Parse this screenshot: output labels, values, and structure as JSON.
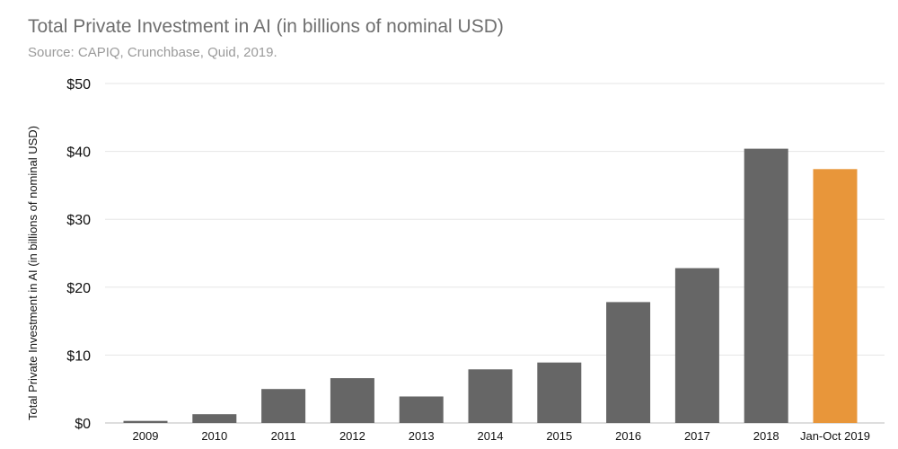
{
  "chart_data": {
    "type": "bar",
    "title": "Total Private Investment in AI (in billions of nominal USD)",
    "subtitle": "Source: CAPIQ, Crunchbase, Quid, 2019.",
    "xlabel": "",
    "ylabel": "Total Private Investment in AI (in billions of nominal USD)",
    "categories": [
      "2009",
      "2010",
      "2011",
      "2012",
      "2013",
      "2014",
      "2015",
      "2016",
      "2017",
      "2018",
      "Jan-Oct 2019"
    ],
    "values": [
      0.3,
      1.3,
      5.0,
      6.6,
      3.9,
      7.9,
      8.9,
      17.8,
      22.8,
      40.4,
      37.4
    ],
    "bar_colors": [
      "#666666",
      "#666666",
      "#666666",
      "#666666",
      "#666666",
      "#666666",
      "#666666",
      "#666666",
      "#666666",
      "#666666",
      "#e8963a"
    ],
    "ylim": [
      0,
      50
    ],
    "yticks": [
      0,
      10,
      20,
      30,
      40,
      50
    ],
    "ytick_labels": [
      "$0",
      "$10",
      "$20",
      "$30",
      "$40",
      "$50"
    ],
    "grid": true,
    "legend": "none"
  }
}
